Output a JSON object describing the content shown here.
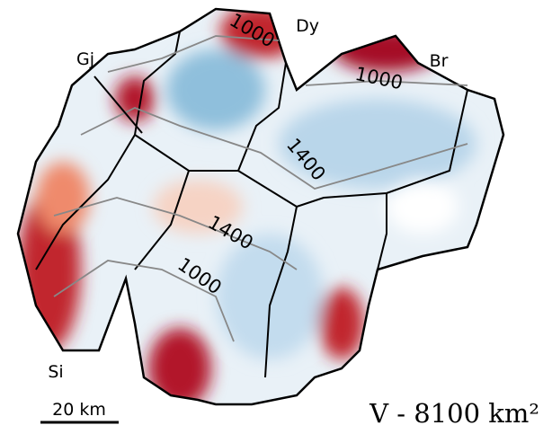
{
  "labels": {
    "regions": [
      "Dy",
      "Gj",
      "Br",
      "Si"
    ],
    "contours": [
      "1000",
      "1000",
      "1400",
      "1400",
      "1000"
    ]
  },
  "scale_bar": "20 km",
  "caption": "V - 8100 km²"
}
